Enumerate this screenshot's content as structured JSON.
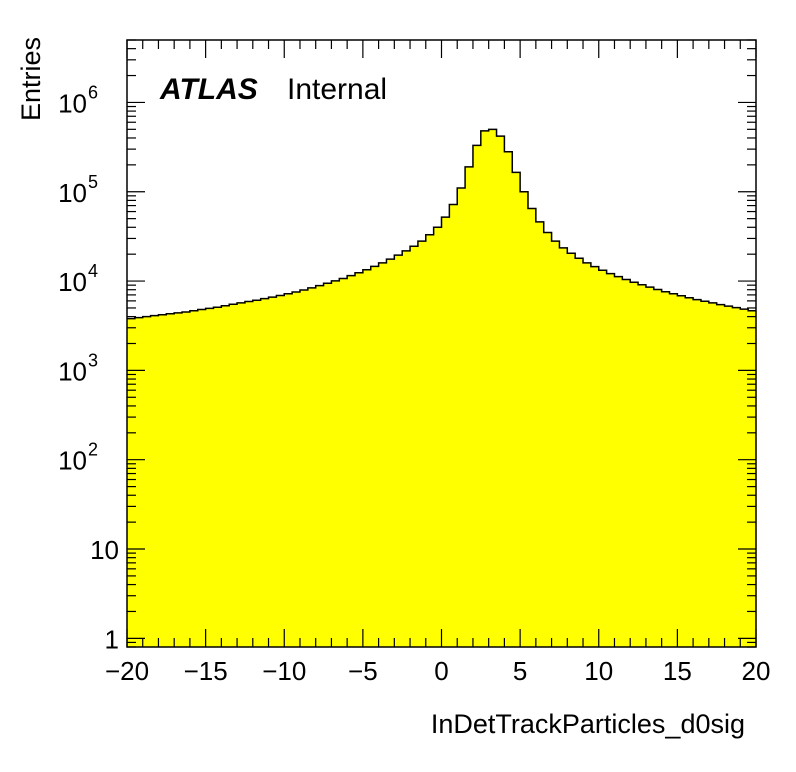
{
  "chart_data": {
    "type": "bar",
    "title": "",
    "xlabel": "InDetTrackParticles_d0sig",
    "ylabel": "Entries",
    "experiment_label": "ATLAS",
    "status_label": "Internal",
    "xlim": [
      -20,
      20
    ],
    "ylim": [
      0.8,
      5000000
    ],
    "y_scale": "log",
    "fill_color": "#ffff00",
    "line_color": "#000000",
    "x_ticks": [
      -20,
      -15,
      -10,
      -5,
      0,
      5,
      10,
      15,
      20
    ],
    "x_tick_labels": [
      "−20",
      "−15",
      "−10",
      "−5",
      "0",
      "5",
      "10",
      "15",
      "20"
    ],
    "y_ticks": [
      1,
      10,
      100,
      1000,
      10000,
      100000,
      1000000
    ],
    "y_tick_labels": [
      {
        "base": "1",
        "exp": ""
      },
      {
        "base": "10",
        "exp": ""
      },
      {
        "base": "10",
        "exp": "2"
      },
      {
        "base": "10",
        "exp": "3"
      },
      {
        "base": "10",
        "exp": "4"
      },
      {
        "base": "10",
        "exp": "5"
      },
      {
        "base": "10",
        "exp": "6"
      }
    ],
    "bin_edges_start": -20,
    "bin_width": 0.5,
    "values": [
      3800,
      3900,
      4000,
      4100,
      4200,
      4300,
      4400,
      4500,
      4650,
      4800,
      4950,
      5100,
      5300,
      5500,
      5700,
      5900,
      6100,
      6350,
      6600,
      6900,
      7200,
      7550,
      7950,
      8400,
      8900,
      9450,
      10050,
      10700,
      11500,
      12400,
      13400,
      14600,
      16000,
      17600,
      19500,
      21800,
      24500,
      28000,
      33000,
      40000,
      52000,
      72000,
      110000,
      190000,
      330000,
      480000,
      500000,
      420000,
      280000,
      165000,
      100000,
      65000,
      46000,
      35000,
      28000,
      23500,
      20500,
      18000,
      16000,
      14500,
      13200,
      12100,
      11200,
      10400,
      9700,
      9100,
      8550,
      8050,
      7600,
      7200,
      6850,
      6500,
      6200,
      5950,
      5700,
      5450,
      5250,
      5050,
      4850,
      4650
    ]
  }
}
